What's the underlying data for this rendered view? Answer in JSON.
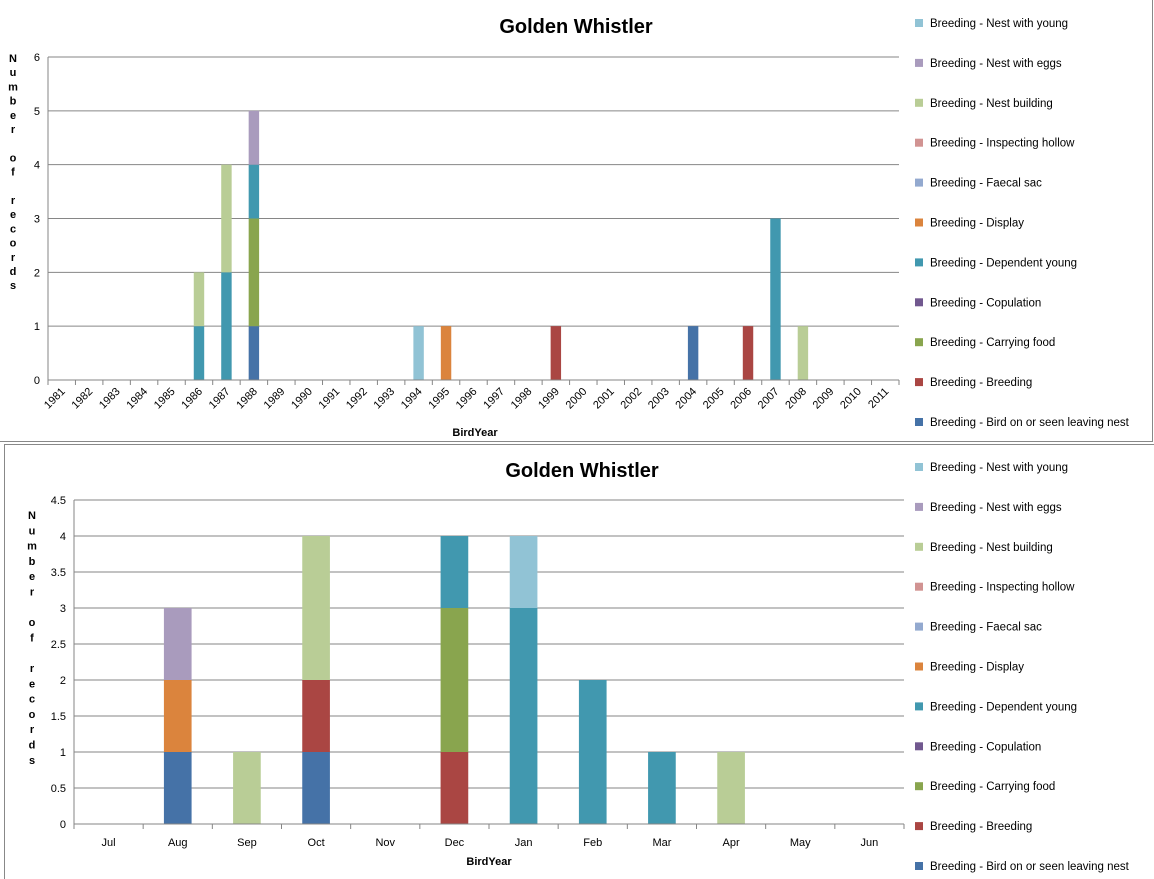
{
  "chart_data": [
    {
      "type": "bar",
      "stacked": true,
      "title": "Golden Whistler",
      "xlabel": "BirdYear",
      "ylabel": "Number of records",
      "ylim": [
        0,
        6
      ],
      "yticks": [
        "0",
        "1",
        "2",
        "3",
        "4",
        "5",
        "6"
      ],
      "grid": true,
      "legend_position": "right",
      "categories": [
        "1981",
        "1982",
        "1983",
        "1984",
        "1985",
        "1986",
        "1987",
        "1988",
        "1989",
        "1990",
        "1991",
        "1992",
        "1993",
        "1994",
        "1995",
        "1996",
        "1997",
        "1998",
        "1999",
        "2000",
        "2001",
        "2002",
        "2003",
        "2004",
        "2005",
        "2006",
        "2007",
        "2008",
        "2009",
        "2010",
        "2011"
      ],
      "series": [
        {
          "name": "Breeding - Bird on or seen leaving nest",
          "color": "#4572A7",
          "values": [
            0,
            0,
            0,
            0,
            0,
            0,
            0,
            1,
            0,
            0,
            0,
            0,
            0,
            0,
            0,
            0,
            0,
            0,
            0,
            0,
            0,
            0,
            0,
            1,
            0,
            0,
            0,
            0,
            0,
            0,
            0
          ]
        },
        {
          "name": "Breeding - Breeding",
          "color": "#AA4643",
          "values": [
            0,
            0,
            0,
            0,
            0,
            0,
            0,
            0,
            0,
            0,
            0,
            0,
            0,
            0,
            0,
            0,
            0,
            0,
            1,
            0,
            0,
            0,
            0,
            0,
            0,
            1,
            0,
            0,
            0,
            0,
            0
          ]
        },
        {
          "name": "Breeding - Carrying food",
          "color": "#89A54E",
          "values": [
            0,
            0,
            0,
            0,
            0,
            0,
            0,
            2,
            0,
            0,
            0,
            0,
            0,
            0,
            0,
            0,
            0,
            0,
            0,
            0,
            0,
            0,
            0,
            0,
            0,
            0,
            0,
            0,
            0,
            0,
            0
          ]
        },
        {
          "name": "Breeding - Copulation",
          "color": "#71588F",
          "values": [
            0,
            0,
            0,
            0,
            0,
            0,
            0,
            0,
            0,
            0,
            0,
            0,
            0,
            0,
            0,
            0,
            0,
            0,
            0,
            0,
            0,
            0,
            0,
            0,
            0,
            0,
            0,
            0,
            0,
            0,
            0
          ]
        },
        {
          "name": "Breeding - Dependent young",
          "color": "#4198AF",
          "values": [
            0,
            0,
            0,
            0,
            0,
            1,
            2,
            1,
            0,
            0,
            0,
            0,
            0,
            0,
            0,
            0,
            0,
            0,
            0,
            0,
            0,
            0,
            0,
            0,
            0,
            0,
            3,
            0,
            0,
            0,
            0
          ]
        },
        {
          "name": "Breeding - Display",
          "color": "#DB843D",
          "values": [
            0,
            0,
            0,
            0,
            0,
            0,
            0,
            0,
            0,
            0,
            0,
            0,
            0,
            0,
            1,
            0,
            0,
            0,
            0,
            0,
            0,
            0,
            0,
            0,
            0,
            0,
            0,
            0,
            0,
            0,
            0
          ]
        },
        {
          "name": "Breeding - Faecal  sac",
          "color": "#93A9CF",
          "values": [
            0,
            0,
            0,
            0,
            0,
            0,
            0,
            0,
            0,
            0,
            0,
            0,
            0,
            0,
            0,
            0,
            0,
            0,
            0,
            0,
            0,
            0,
            0,
            0,
            0,
            0,
            0,
            0,
            0,
            0,
            0
          ]
        },
        {
          "name": "Breeding - Inspecting hollow",
          "color": "#D19392",
          "values": [
            0,
            0,
            0,
            0,
            0,
            0,
            0,
            0,
            0,
            0,
            0,
            0,
            0,
            0,
            0,
            0,
            0,
            0,
            0,
            0,
            0,
            0,
            0,
            0,
            0,
            0,
            0,
            0,
            0,
            0,
            0
          ]
        },
        {
          "name": "Breeding - Nest building",
          "color": "#B9CD96",
          "values": [
            0,
            0,
            0,
            0,
            0,
            1,
            2,
            0,
            0,
            0,
            0,
            0,
            0,
            0,
            0,
            0,
            0,
            0,
            0,
            0,
            0,
            0,
            0,
            0,
            0,
            0,
            0,
            1,
            0,
            0,
            0
          ]
        },
        {
          "name": "Breeding - Nest with eggs",
          "color": "#A99BBD",
          "values": [
            0,
            0,
            0,
            0,
            0,
            0,
            0,
            1,
            0,
            0,
            0,
            0,
            0,
            0,
            0,
            0,
            0,
            0,
            0,
            0,
            0,
            0,
            0,
            0,
            0,
            0,
            0,
            0,
            0,
            0,
            0
          ]
        },
        {
          "name": "Breeding - Nest with young",
          "color": "#91C3D5",
          "values": [
            0,
            0,
            0,
            0,
            0,
            0,
            0,
            0,
            0,
            0,
            0,
            0,
            0,
            1,
            0,
            0,
            0,
            0,
            0,
            0,
            0,
            0,
            0,
            0,
            0,
            0,
            0,
            0,
            0,
            0,
            0
          ]
        }
      ]
    },
    {
      "type": "bar",
      "stacked": true,
      "title": "Golden Whistler",
      "xlabel": "BirdYear",
      "ylabel": "Number of records",
      "ylim": [
        0,
        4.5
      ],
      "yticks": [
        "0",
        "0.5",
        "1",
        "1.5",
        "2",
        "2.5",
        "3",
        "3.5",
        "4",
        "4.5"
      ],
      "grid": true,
      "legend_position": "right",
      "categories": [
        "Jul",
        "Aug",
        "Sep",
        "Oct",
        "Nov",
        "Dec",
        "Jan",
        "Feb",
        "Mar",
        "Apr",
        "May",
        "Jun"
      ],
      "series": [
        {
          "name": "Breeding - Bird on or seen leaving nest",
          "color": "#4572A7",
          "values": [
            0,
            1,
            0,
            1,
            0,
            0,
            0,
            0,
            0,
            0,
            0,
            0
          ]
        },
        {
          "name": "Breeding - Breeding",
          "color": "#AA4643",
          "values": [
            0,
            0,
            0,
            1,
            0,
            1,
            0,
            0,
            0,
            0,
            0,
            0
          ]
        },
        {
          "name": "Breeding - Carrying food",
          "color": "#89A54E",
          "values": [
            0,
            0,
            0,
            0,
            0,
            2,
            0,
            0,
            0,
            0,
            0,
            0
          ]
        },
        {
          "name": "Breeding - Copulation",
          "color": "#71588F",
          "values": [
            0,
            0,
            0,
            0,
            0,
            0,
            0,
            0,
            0,
            0,
            0,
            0
          ]
        },
        {
          "name": "Breeding - Dependent young",
          "color": "#4198AF",
          "values": [
            0,
            0,
            0,
            0,
            0,
            1,
            3,
            2,
            1,
            0,
            0,
            0
          ]
        },
        {
          "name": "Breeding - Display",
          "color": "#DB843D",
          "values": [
            0,
            1,
            0,
            0,
            0,
            0,
            0,
            0,
            0,
            0,
            0,
            0
          ]
        },
        {
          "name": "Breeding - Faecal  sac",
          "color": "#93A9CF",
          "values": [
            0,
            0,
            0,
            0,
            0,
            0,
            0,
            0,
            0,
            0,
            0,
            0
          ]
        },
        {
          "name": "Breeding - Inspecting hollow",
          "color": "#D19392",
          "values": [
            0,
            0,
            0,
            0,
            0,
            0,
            0,
            0,
            0,
            0,
            0,
            0
          ]
        },
        {
          "name": "Breeding - Nest building",
          "color": "#B9CD96",
          "values": [
            0,
            0,
            1,
            2,
            0,
            0,
            0,
            0,
            0,
            1,
            0,
            0
          ]
        },
        {
          "name": "Breeding - Nest with eggs",
          "color": "#A99BBD",
          "values": [
            0,
            1,
            0,
            0,
            0,
            0,
            0,
            0,
            0,
            0,
            0,
            0
          ]
        },
        {
          "name": "Breeding - Nest with young",
          "color": "#91C3D5",
          "values": [
            0,
            0,
            0,
            0,
            0,
            0,
            1,
            0,
            0,
            0,
            0,
            0
          ]
        }
      ]
    }
  ]
}
